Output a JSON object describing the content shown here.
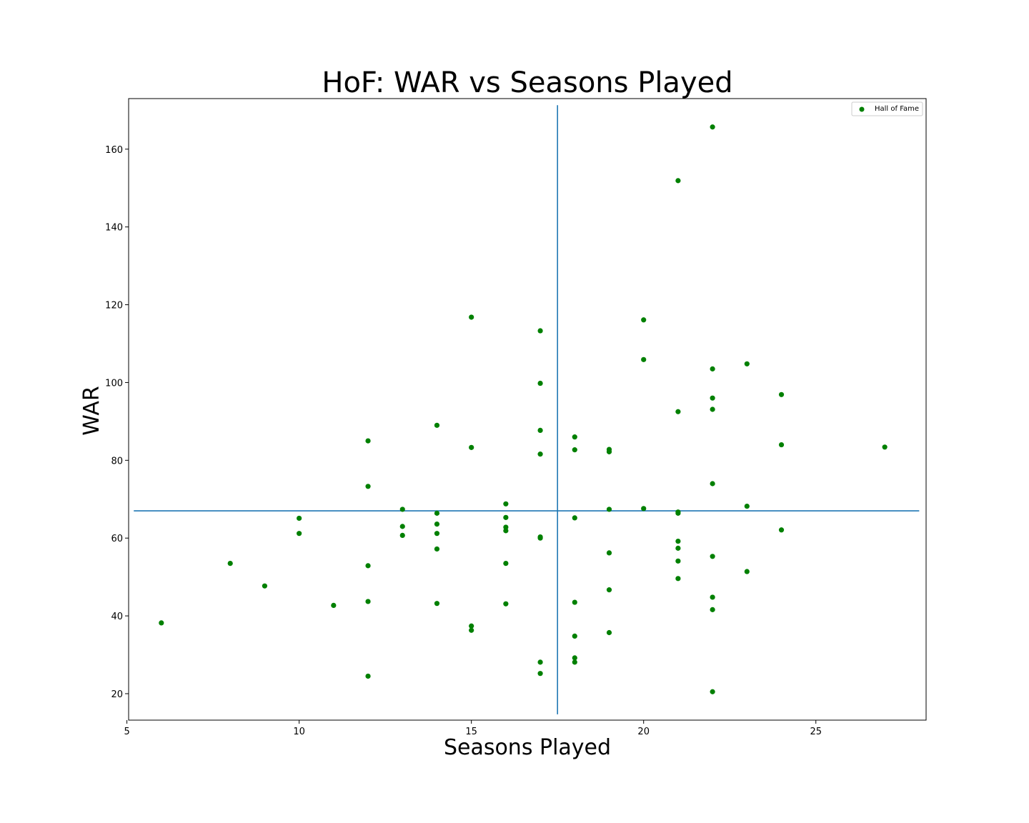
{
  "chart_data": {
    "type": "scatter",
    "title": "HoF: WAR vs Seasons Played",
    "xlabel": "Seasons Played",
    "ylabel": "WAR",
    "xlim": [
      5.05,
      28.2
    ],
    "ylim": [
      13.2,
      173
    ],
    "xticks": [
      5,
      10,
      15,
      20,
      25
    ],
    "yticks": [
      20,
      40,
      60,
      80,
      100,
      120,
      140,
      160
    ],
    "grid": false,
    "legend": {
      "position": "top-right",
      "entries": [
        "Hall of Fame"
      ]
    },
    "colors": {
      "points": "#008000",
      "reference_lines": "#1f77b4"
    },
    "reference_lines": {
      "vertical_x": 17.5,
      "horizontal_y": 67,
      "vertical_y_range": [
        14.7,
        171.3
      ],
      "horizontal_x_range": [
        5.2,
        28.0
      ]
    },
    "series": [
      {
        "name": "Hall of Fame",
        "points": [
          [
            6,
            38.2
          ],
          [
            8,
            53.5
          ],
          [
            9,
            47.7
          ],
          [
            10,
            65.1
          ],
          [
            10,
            61.2
          ],
          [
            11,
            42.7
          ],
          [
            12,
            85.0
          ],
          [
            12,
            73.3
          ],
          [
            12,
            52.9
          ],
          [
            12,
            43.7
          ],
          [
            12,
            24.5
          ],
          [
            13,
            67.4
          ],
          [
            13,
            63.0
          ],
          [
            13,
            60.7
          ],
          [
            14,
            89.0
          ],
          [
            14,
            66.4
          ],
          [
            14,
            63.6
          ],
          [
            14,
            61.2
          ],
          [
            14,
            57.2
          ],
          [
            14,
            43.2
          ],
          [
            15,
            116.8
          ],
          [
            15,
            83.3
          ],
          [
            15,
            37.4
          ],
          [
            15,
            36.3
          ],
          [
            16,
            68.8
          ],
          [
            16,
            65.3
          ],
          [
            16,
            62.8
          ],
          [
            16,
            61.9
          ],
          [
            16,
            53.5
          ],
          [
            16,
            43.1
          ],
          [
            17,
            113.3
          ],
          [
            17,
            99.8
          ],
          [
            17,
            87.7
          ],
          [
            17,
            81.6
          ],
          [
            17,
            60.3
          ],
          [
            17,
            60.0
          ],
          [
            17,
            28.1
          ],
          [
            17,
            25.2
          ],
          [
            18,
            86.0
          ],
          [
            18,
            82.7
          ],
          [
            18,
            65.2
          ],
          [
            18,
            43.5
          ],
          [
            18,
            34.8
          ],
          [
            18,
            29.2
          ],
          [
            18,
            28.1
          ],
          [
            19,
            82.8
          ],
          [
            19,
            82.2
          ],
          [
            19,
            67.4
          ],
          [
            19,
            56.2
          ],
          [
            19,
            46.7
          ],
          [
            19,
            35.7
          ],
          [
            20,
            116.1
          ],
          [
            20,
            105.9
          ],
          [
            20,
            67.6
          ],
          [
            21,
            151.9
          ],
          [
            21,
            92.5
          ],
          [
            21,
            66.7
          ],
          [
            21,
            66.4
          ],
          [
            21,
            59.2
          ],
          [
            21,
            57.4
          ],
          [
            21,
            54.1
          ],
          [
            21,
            49.6
          ],
          [
            22,
            165.7
          ],
          [
            22,
            103.5
          ],
          [
            22,
            96.0
          ],
          [
            22,
            93.1
          ],
          [
            22,
            74.0
          ],
          [
            22,
            55.3
          ],
          [
            22,
            44.8
          ],
          [
            22,
            41.6
          ],
          [
            22,
            20.5
          ],
          [
            23,
            104.8
          ],
          [
            23,
            68.2
          ],
          [
            23,
            51.4
          ],
          [
            24,
            96.9
          ],
          [
            24,
            84.0
          ],
          [
            24,
            62.1
          ],
          [
            27,
            83.4
          ]
        ]
      }
    ]
  }
}
